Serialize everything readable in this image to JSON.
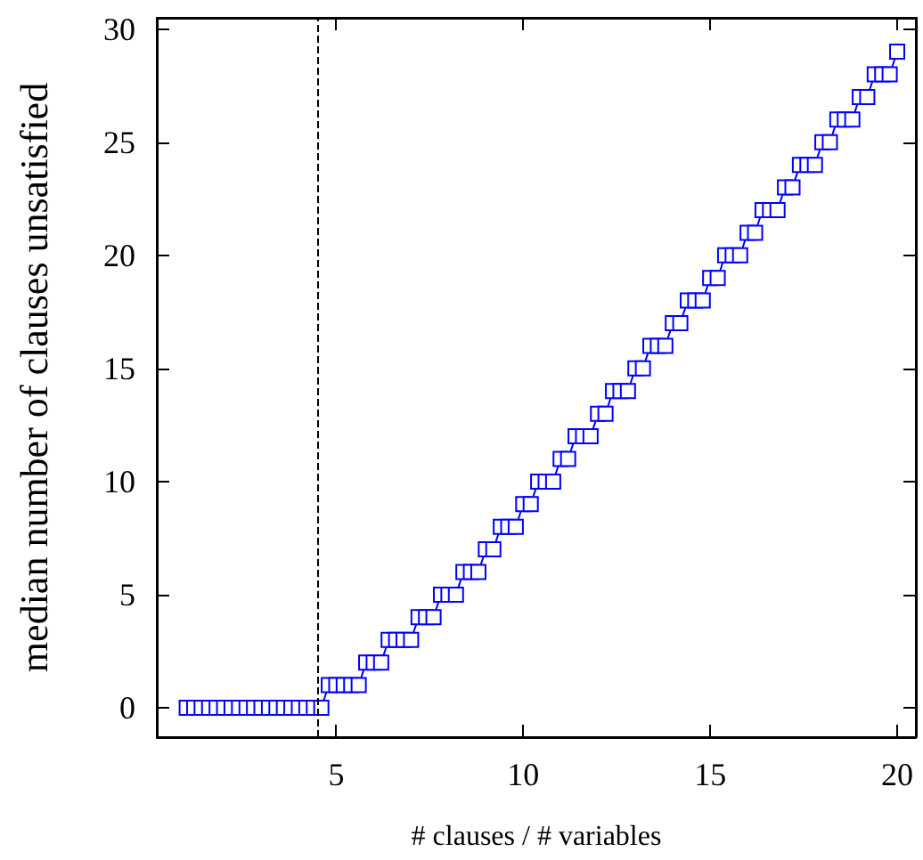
{
  "chart_data": {
    "type": "line",
    "xlabel": "# clauses / # variables",
    "ylabel": "median number of clauses unsatisfied",
    "x": [
      1,
      1.2,
      1.4,
      1.6,
      1.8,
      2,
      2.2,
      2.4,
      2.6,
      2.8,
      3,
      3.2,
      3.4,
      3.6,
      3.8,
      4,
      4.2,
      4.4,
      4.6,
      4.8,
      5,
      5.2,
      5.4,
      5.6,
      5.8,
      6,
      6.2,
      6.4,
      6.6,
      6.8,
      7,
      7.2,
      7.4,
      7.6,
      7.8,
      8,
      8.2,
      8.4,
      8.6,
      8.8,
      9,
      9.2,
      9.4,
      9.6,
      9.8,
      10,
      10.2,
      10.4,
      10.6,
      10.8,
      11,
      11.2,
      11.4,
      11.6,
      11.8,
      12,
      12.2,
      12.4,
      12.6,
      12.8,
      13,
      13.2,
      13.4,
      13.6,
      13.8,
      14,
      14.2,
      14.4,
      14.6,
      14.8,
      15,
      15.2,
      15.4,
      15.6,
      15.8,
      16,
      16.2,
      16.4,
      16.6,
      16.8,
      17,
      17.2,
      17.4,
      17.6,
      17.8,
      18,
      18.2,
      18.4,
      18.6,
      18.8,
      19,
      19.2,
      19.4,
      19.6,
      19.8,
      20
    ],
    "series": [
      {
        "color": "#0000ff",
        "values": [
          0,
          0,
          0,
          0,
          0,
          0,
          0,
          0,
          0,
          0,
          0,
          0,
          0,
          0,
          0,
          0,
          0,
          0,
          0,
          1,
          1,
          1,
          1,
          1,
          2,
          2,
          2,
          3,
          3,
          3,
          3,
          4,
          4,
          4,
          5,
          5,
          5,
          6,
          6,
          6,
          7,
          7,
          8,
          8,
          8,
          9,
          9,
          10,
          10,
          10,
          11,
          11,
          12,
          12,
          12,
          13,
          13,
          14,
          14,
          14,
          15,
          15,
          16,
          16,
          16,
          17,
          17,
          18,
          18,
          18,
          19,
          19,
          20,
          20,
          20,
          21,
          21,
          22,
          22,
          22,
          23,
          23,
          24,
          24,
          24,
          25,
          25,
          26,
          26,
          26,
          27,
          27,
          28,
          28,
          28,
          29
        ]
      }
    ],
    "xlim": [
      0.2,
      20.5
    ],
    "ylim": [
      -1.3,
      30.5
    ],
    "xticks": [
      5,
      10,
      15,
      20
    ],
    "yticks": [
      0,
      5,
      10,
      15,
      20,
      25,
      30
    ],
    "ref_lines": [
      {
        "axis": "x",
        "value": 4.5,
        "line_style": "dashed"
      }
    ],
    "marker": "square",
    "line_style": "solid",
    "grid": false
  }
}
